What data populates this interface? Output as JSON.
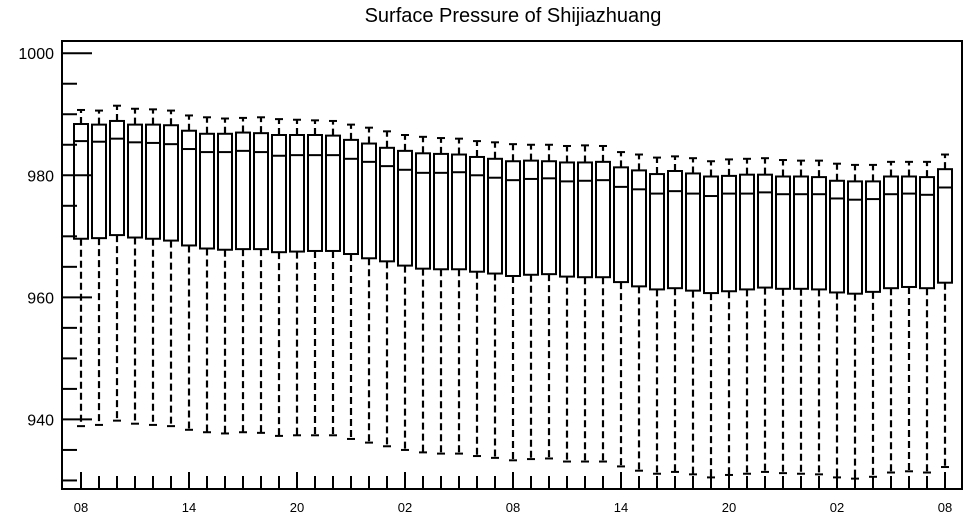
{
  "chart_data": {
    "type": "boxplot",
    "title": "Surface Pressure of Shijiazhuang",
    "xlabel": "",
    "ylabel": "",
    "ylim": [
      928.6,
      1002.0
    ],
    "yticks_major": [
      940,
      960,
      980,
      1000
    ],
    "yticks_minor_step": 5,
    "x_tick_labels": [
      "08",
      "14",
      "20",
      "02",
      "08",
      "14",
      "20",
      "02",
      "08"
    ],
    "n_boxes": 49,
    "grid": false,
    "legend": "none",
    "whisker_style": "dashed",
    "boxes": {
      "q3": [
        988.4,
        988.3,
        988.9,
        988.3,
        988.3,
        988.2,
        987.3,
        986.8,
        986.8,
        987.0,
        986.9,
        986.6,
        986.6,
        986.6,
        986.5,
        985.8,
        985.2,
        984.5,
        984.0,
        983.6,
        983.5,
        983.4,
        983.0,
        982.7,
        982.3,
        982.4,
        982.3,
        982.1,
        982.1,
        982.2,
        981.3,
        980.8,
        980.2,
        980.7,
        980.3,
        979.8,
        979.9,
        980.1,
        980.1,
        979.8,
        979.8,
        979.7,
        979.1,
        979.0,
        979.0,
        979.8,
        979.8,
        979.7,
        981.0
      ],
      "median": [
        985.6,
        985.5,
        986.0,
        985.4,
        985.3,
        985.1,
        984.3,
        983.8,
        983.8,
        984.0,
        983.8,
        983.2,
        983.3,
        983.3,
        983.3,
        982.7,
        982.2,
        981.5,
        980.9,
        980.4,
        980.4,
        980.5,
        980.0,
        979.6,
        979.2,
        979.4,
        979.5,
        979.0,
        979.1,
        979.2,
        978.1,
        977.7,
        977.0,
        977.4,
        977.0,
        976.6,
        977.0,
        977.0,
        977.2,
        976.9,
        976.9,
        976.9,
        976.2,
        976.0,
        976.1,
        976.9,
        977.0,
        976.8,
        978.0
      ],
      "q1": [
        969.6,
        969.7,
        970.2,
        969.8,
        969.6,
        969.3,
        968.5,
        968.0,
        967.8,
        967.9,
        967.9,
        967.4,
        967.5,
        967.6,
        967.6,
        967.1,
        966.4,
        965.9,
        965.2,
        964.7,
        964.6,
        964.6,
        964.2,
        963.9,
        963.5,
        963.7,
        963.8,
        963.4,
        963.3,
        963.3,
        962.5,
        961.8,
        961.3,
        961.5,
        961.1,
        960.7,
        961.0,
        961.3,
        961.6,
        961.4,
        961.4,
        961.3,
        960.8,
        960.6,
        960.9,
        961.5,
        961.7,
        961.5,
        962.4
      ],
      "whisker_high": [
        990.7,
        990.6,
        991.4,
        990.9,
        990.8,
        990.6,
        989.8,
        989.5,
        989.3,
        989.4,
        989.5,
        989.2,
        989.1,
        989.0,
        988.9,
        988.3,
        987.8,
        987.2,
        986.6,
        986.3,
        986.1,
        986.0,
        985.6,
        985.4,
        985.1,
        985.0,
        985.0,
        984.8,
        984.9,
        984.8,
        983.8,
        983.4,
        982.9,
        983.1,
        982.8,
        982.3,
        982.6,
        982.7,
        982.8,
        982.5,
        982.4,
        982.4,
        981.9,
        981.7,
        981.7,
        982.2,
        982.2,
        982.2,
        983.4
      ],
      "whisker_low": [
        938.9,
        939.1,
        939.8,
        939.3,
        939.1,
        938.9,
        938.3,
        937.9,
        937.7,
        937.9,
        937.8,
        937.3,
        937.4,
        937.4,
        937.4,
        936.8,
        936.2,
        935.6,
        935.0,
        934.6,
        934.4,
        934.4,
        934.0,
        933.7,
        933.3,
        933.5,
        933.6,
        933.1,
        933.1,
        933.1,
        932.3,
        931.6,
        931.1,
        931.4,
        931.0,
        930.5,
        930.9,
        931.1,
        931.4,
        931.2,
        931.1,
        931.0,
        930.5,
        930.3,
        930.6,
        931.3,
        931.5,
        931.3,
        932.2
      ]
    }
  }
}
